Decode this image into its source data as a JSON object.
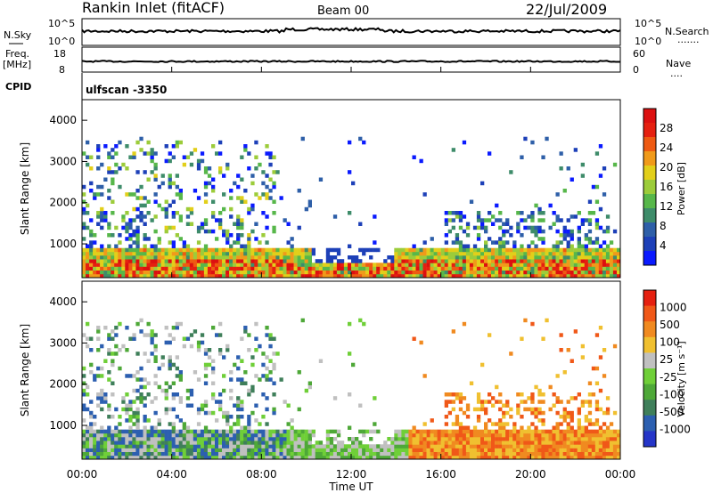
{
  "header": {
    "station": "Rankin Inlet (fitACF)",
    "beam": "Beam 00",
    "date": "22/Jul/2009"
  },
  "left_labels": {
    "nsky": "N.Sky",
    "freq": "Freq.",
    "freq_unit": "[MHz]",
    "cpid": "CPID"
  },
  "right_labels": {
    "nsearch": "N.Search",
    "nsearch_dots": "·······",
    "nave": "Nave",
    "nave_dots": "····"
  },
  "noise_axis": {
    "left_ticks": [
      "10^5",
      "10^0"
    ],
    "right_ticks": [
      "10^5",
      "10^0"
    ]
  },
  "freq_axis": {
    "left_ticks": [
      "18",
      "8"
    ],
    "right_ticks": [
      "60",
      "0"
    ]
  },
  "cpid_text": "ulfscan  -3350",
  "chart_data": [
    {
      "type": "heatmap",
      "name": "power-panel",
      "ylabel": "Slant Range [km]",
      "yticks": [
        1000,
        2000,
        3000,
        4000
      ],
      "ylim": [
        180,
        4500
      ],
      "xlim_hours": [
        0,
        24
      ],
      "xticks": [
        "00:00",
        "04:00",
        "08:00",
        "12:00",
        "16:00",
        "20:00",
        "00:00"
      ],
      "colorbar_label": "Power [dB]",
      "colorbar_ticks": [
        "4",
        "8",
        "12",
        "16",
        "20",
        "24",
        "28"
      ],
      "colorbar_colors": [
        "#0a1aff",
        "#1d40b8",
        "#2e5fa8",
        "#3e8c6a",
        "#57b74a",
        "#9ccc3a",
        "#e2cf1a",
        "#f09a1a",
        "#ee5a12",
        "#e52010",
        "#dc1010"
      ]
    },
    {
      "type": "heatmap",
      "name": "velocity-panel",
      "ylabel": "Slant Range [km]",
      "yticks": [
        1000,
        2000,
        3000,
        4000
      ],
      "ylim": [
        180,
        4500
      ],
      "xlim_hours": [
        0,
        24
      ],
      "xticks": [
        "00:00",
        "04:00",
        "08:00",
        "12:00",
        "16:00",
        "20:00",
        "00:00"
      ],
      "xlabel": "Time UT",
      "colorbar_label": "Velocity [m s⁻¹]",
      "colorbar_ticks": [
        "1000",
        "500",
        "100",
        "25",
        "-25",
        "-100",
        "-500",
        "-1000"
      ],
      "colorbar_colors": [
        "#2535c8",
        "#2c5fb0",
        "#3f7f5a",
        "#4ea838",
        "#6fcf38",
        "#c0c0c0",
        "#f0c030",
        "#f08a20",
        "#f05818",
        "#e52010"
      ]
    }
  ]
}
